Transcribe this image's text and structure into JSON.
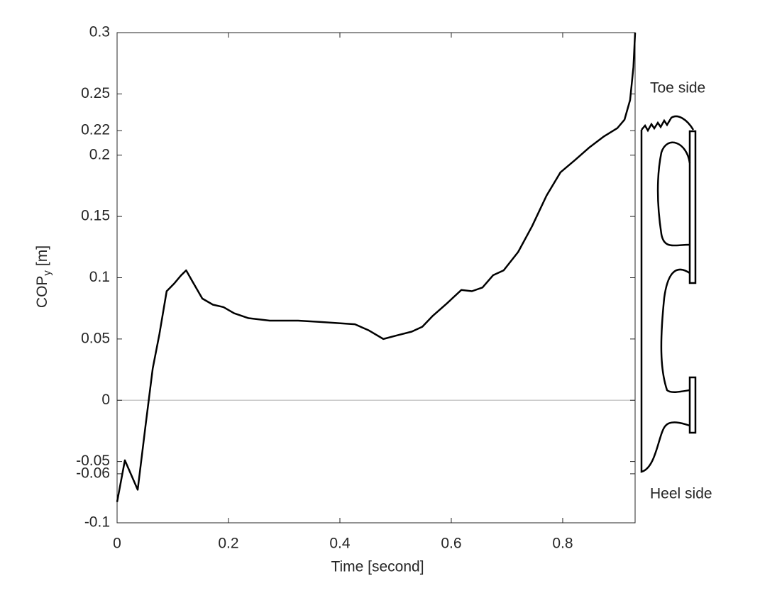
{
  "chart_data": {
    "type": "line",
    "xlabel": "Time [second]",
    "ylabel": {
      "base": "COP",
      "subscript": "y",
      "unit": "[m]"
    },
    "annotations": [
      "Toe side",
      "Heel side"
    ],
    "x": [
      0,
      0.014,
      0.037,
      0.051,
      0.064,
      0.076,
      0.089,
      0.102,
      0.115,
      0.124,
      0.134,
      0.153,
      0.172,
      0.191,
      0.21,
      0.236,
      0.274,
      0.325,
      0.363,
      0.427,
      0.452,
      0.478,
      0.503,
      0.529,
      0.548,
      0.567,
      0.592,
      0.618,
      0.637,
      0.656,
      0.675,
      0.694,
      0.72,
      0.745,
      0.771,
      0.796,
      0.822,
      0.847,
      0.873,
      0.898,
      0.911,
      0.921,
      0.927,
      0.93
    ],
    "series": [
      {
        "color": "#000000",
        "values": [
          -0.083,
          -0.049,
          -0.073,
          -0.021,
          0.026,
          0.054,
          0.089,
          0.095,
          0.102,
          0.106,
          0.098,
          0.083,
          0.078,
          0.076,
          0.071,
          0.067,
          0.065,
          0.065,
          0.064,
          0.062,
          0.057,
          0.05,
          0.053,
          0.056,
          0.06,
          0.069,
          0.079,
          0.09,
          0.089,
          0.092,
          0.102,
          0.106,
          0.121,
          0.142,
          0.167,
          0.186,
          0.196,
          0.206,
          0.215,
          0.222,
          0.229,
          0.245,
          0.272,
          0.3
        ]
      }
    ],
    "xlim": [
      0,
      0.93
    ],
    "xticks": [
      0,
      0.2,
      0.4,
      0.6,
      0.8
    ],
    "ylim": [
      -0.1,
      0.3
    ],
    "yticks": [
      -0.1,
      -0.06,
      -0.05,
      0,
      0.05,
      0.1,
      0.15,
      0.2,
      0.22,
      0.25,
      0.3
    ],
    "zero_line": true
  }
}
